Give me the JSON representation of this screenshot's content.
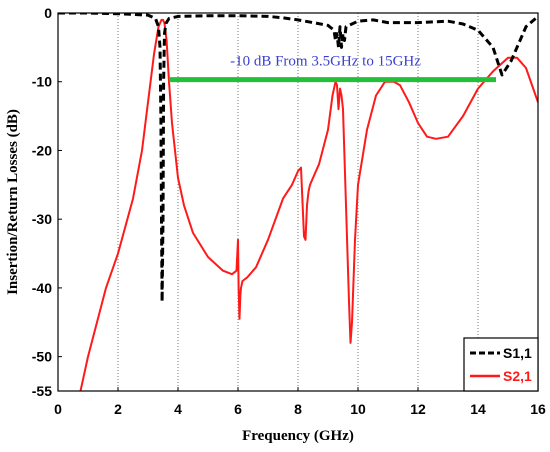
{
  "chart_data": {
    "type": "line",
    "xlabel": "Frequency (GHz)",
    "ylabel": "Insertion/Return Losses (dB)",
    "xlim": [
      0,
      16
    ],
    "ylim": [
      -55,
      0
    ],
    "x_ticks": [
      "0",
      "2",
      "4",
      "6",
      "8",
      "10",
      "12",
      "14",
      "16"
    ],
    "y_ticks": [
      "0",
      "-10",
      "-20",
      "-30",
      "-40",
      "-50",
      "-55"
    ],
    "y_tick_values": [
      0,
      -10,
      -20,
      -30,
      -40,
      -50,
      -55
    ],
    "x_tick_values": [
      0,
      2,
      4,
      6,
      8,
      10,
      12,
      14,
      16
    ],
    "grid": "vertical dotted",
    "legend_position": "bottom-right",
    "annotation": {
      "text": "-10 dB From 3.5GHz to 15GHz",
      "color": "#3a3fd0",
      "bar_color": "#22c038",
      "bar_x": [
        3.7,
        14.6
      ],
      "bar_y": -9.7
    },
    "series": [
      {
        "name": "S1,1",
        "color": "#000000",
        "style": "dashed",
        "x": [
          0,
          1,
          2,
          3,
          3.25,
          3.35,
          3.4,
          3.43,
          3.45,
          3.47,
          3.5,
          3.52,
          3.55,
          3.6,
          3.7,
          4,
          5,
          6,
          7,
          7.5,
          8,
          8.5,
          9,
          9.2,
          9.25,
          9.3,
          9.35,
          9.4,
          9.45,
          9.5,
          9.55,
          9.6,
          10,
          10.5,
          11,
          12,
          12.5,
          13,
          13.5,
          14,
          14.5,
          14.8,
          15.1,
          15.3,
          15.6,
          16
        ],
        "y": [
          0,
          0,
          -0.1,
          -0.3,
          -0.8,
          -2,
          -5,
          -15,
          -30,
          -42,
          -30,
          -10,
          -3,
          -1.5,
          -0.8,
          -0.5,
          -0.4,
          -0.4,
          -0.5,
          -0.7,
          -1,
          -1.4,
          -1.8,
          -2.5,
          -4,
          -3,
          -5,
          -2,
          -5,
          -3,
          -4,
          -2,
          -1.2,
          -1,
          -1.4,
          -1.4,
          -1.3,
          -1.2,
          -1.6,
          -2.5,
          -5,
          -9,
          -7,
          -5,
          -2,
          -0.5
        ]
      },
      {
        "name": "S2,1",
        "color": "#ff1a1a",
        "style": "solid",
        "x": [
          0.75,
          1,
          1.3,
          1.6,
          2,
          2.5,
          2.8,
          3,
          3.2,
          3.35,
          3.45,
          3.5,
          3.55,
          3.62,
          3.7,
          3.8,
          3.9,
          4,
          4.2,
          4.5,
          5,
          5.5,
          5.8,
          5.95,
          6,
          6.02,
          6.05,
          6.08,
          6.1,
          6.15,
          6.3,
          6.6,
          7,
          7.5,
          7.8,
          8,
          8.1,
          8.2,
          8.25,
          8.3,
          8.35,
          8.4,
          8.5,
          8.7,
          9,
          9.15,
          9.25,
          9.3,
          9.35,
          9.4,
          9.45,
          9.5,
          9.6,
          9.7,
          9.75,
          9.8,
          9.9,
          10,
          10.3,
          10.6,
          10.9,
          11.2,
          11.4,
          11.7,
          12,
          12.3,
          12.6,
          13,
          13.5,
          14,
          14.5,
          15,
          15.3,
          15.6,
          16
        ],
        "y": [
          -55,
          -50,
          -45,
          -40,
          -35,
          -27,
          -20,
          -13,
          -6,
          -2,
          -1,
          -1,
          -1.5,
          -4,
          -10,
          -16,
          -20,
          -24,
          -28,
          -32,
          -35.5,
          -37.5,
          -38,
          -37.5,
          -33,
          -40,
          -44.5,
          -41,
          -40,
          -39,
          -38.5,
          -37,
          -33,
          -27,
          -25,
          -23,
          -22.5,
          -32.5,
          -33,
          -28,
          -26,
          -25,
          -24,
          -22,
          -17,
          -12,
          -10,
          -10.5,
          -14,
          -11,
          -12,
          -14,
          -28,
          -42,
          -48,
          -45,
          -33,
          -25,
          -17,
          -12,
          -10,
          -10,
          -10.5,
          -13,
          -16,
          -18,
          -18.3,
          -18,
          -15,
          -11,
          -8.5,
          -6.5,
          -6.5,
          -8,
          -13
        ]
      }
    ]
  }
}
